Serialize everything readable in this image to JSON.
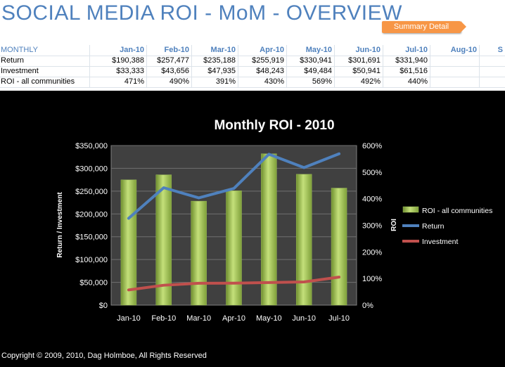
{
  "page": {
    "title": "SOCIAL MEDIA ROI - MoM - OVERVIEW",
    "summary_button": "Summary Detail"
  },
  "table": {
    "header_label": "MONTHLY",
    "months": [
      "Jan-10",
      "Feb-10",
      "Mar-10",
      "Apr-10",
      "May-10",
      "Jun-10",
      "Jul-10",
      "Aug-10",
      "S"
    ],
    "rows": [
      {
        "label": "Return",
        "values": [
          "$190,388",
          "$257,477",
          "$235,188",
          "$255,919",
          "$330,941",
          "$301,691",
          "$331,940"
        ]
      },
      {
        "label": "Investment",
        "values": [
          "$33,333",
          "$43,656",
          "$47,935",
          "$48,243",
          "$49,484",
          "$50,941",
          "$61,516"
        ]
      },
      {
        "label": "ROI - all communities",
        "values": [
          "471%",
          "490%",
          "391%",
          "430%",
          "569%",
          "492%",
          "440%"
        ]
      }
    ]
  },
  "colors": {
    "title": "#4f81bd",
    "button": "#f79646",
    "bar": "#9bbb59",
    "return_line": "#4f81bd",
    "investment_line": "#c0504d",
    "plot_bg": "#404040"
  },
  "chart_data": {
    "type": "bar",
    "title": "Monthly ROI - 2010",
    "categories": [
      "Jan-10",
      "Feb-10",
      "Mar-10",
      "Apr-10",
      "May-10",
      "Jun-10",
      "Jul-10"
    ],
    "series": [
      {
        "name": "ROI - all communities",
        "type": "bar",
        "axis": "right",
        "values": [
          471,
          490,
          391,
          430,
          569,
          492,
          440
        ]
      },
      {
        "name": "Return",
        "type": "line",
        "axis": "left",
        "values": [
          190388,
          257477,
          235188,
          255919,
          330941,
          301691,
          331940
        ]
      },
      {
        "name": "Investment",
        "type": "line",
        "axis": "left",
        "values": [
          33333,
          43656,
          47935,
          48243,
          49484,
          50941,
          61516
        ]
      }
    ],
    "ylabel": "Return / Investment",
    "y2label": "ROI",
    "ylim": [
      0,
      350000
    ],
    "y2lim": [
      0,
      600
    ],
    "yticks": [
      "$0",
      "$50,000",
      "$100,000",
      "$150,000",
      "$200,000",
      "$250,000",
      "$300,000",
      "$350,000"
    ],
    "y2ticks": [
      "0%",
      "100%",
      "200%",
      "300%",
      "400%",
      "500%",
      "600%"
    ],
    "legend": "right"
  },
  "footer": {
    "copyright": "Copyright © 2009, 2010, Dag Holmboe, All Rights Reserved"
  }
}
